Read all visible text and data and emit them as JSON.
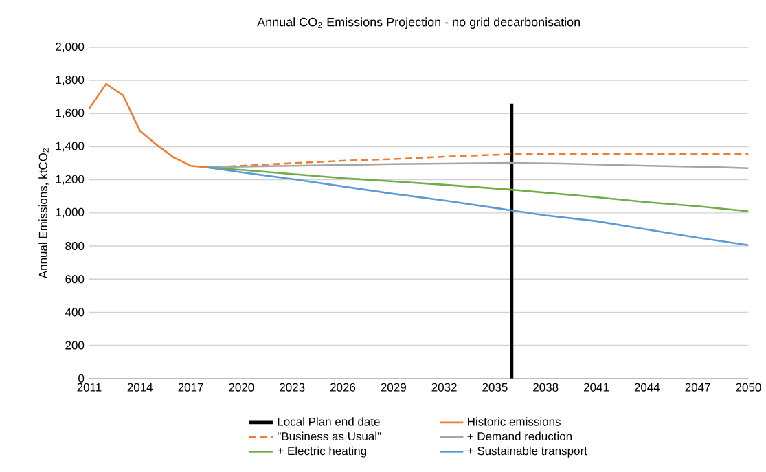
{
  "chart_data": {
    "type": "line",
    "title": "Annual CO$_{2}$ Emissions Projection - no grid decarbonisation",
    "ylabel": "Annual Emissions, ktCO$_{2}$",
    "xlim": [
      2011,
      2050
    ],
    "ylim": [
      0,
      2000
    ],
    "xticks": [
      2011,
      2014,
      2017,
      2020,
      2023,
      2026,
      2029,
      2032,
      2035,
      2038,
      2041,
      2044,
      2047,
      2050
    ],
    "yticks": [
      0,
      200,
      400,
      600,
      800,
      {
        "value": 1000,
        "label": "1,000"
      },
      {
        "value": 1200,
        "label": "1,200"
      },
      {
        "value": 1400,
        "label": "1,400"
      },
      {
        "value": 1600,
        "label": "1,600"
      },
      {
        "value": 1800,
        "label": "1,800"
      },
      {
        "value": 2000,
        "label": "2,000"
      }
    ],
    "grid": "y",
    "legend": "bottom",
    "line_style": "solid",
    "series": [
      {
        "name": "Local Plan end date",
        "color": "#000000",
        "x": [
          2036,
          2036
        ],
        "values": [
          0,
          1660
        ]
      },
      {
        "name": "Historic emissions",
        "color": "#ed7d31",
        "x": [
          2011,
          2012,
          2013,
          2014,
          2015,
          2016,
          2017,
          2018
        ],
        "values": [
          1630,
          1780,
          1710,
          1495,
          1410,
          1335,
          1285,
          1275
        ]
      },
      {
        "name": "\"Business as Usual\"",
        "color": "#ed7d31",
        "line_style": "dashed",
        "x": [
          2018,
          2020,
          2023,
          2026,
          2029,
          2032,
          2036,
          2040,
          2045,
          2050
        ],
        "values": [
          1275,
          1285,
          1300,
          1315,
          1325,
          1340,
          1355,
          1355,
          1355,
          1355
        ]
      },
      {
        "name": "+ Demand reduction",
        "color": "#a5a5a5",
        "x": [
          2018,
          2020,
          2023,
          2026,
          2029,
          2032,
          2036,
          2039,
          2042,
          2045,
          2048,
          2050
        ],
        "values": [
          1275,
          1280,
          1285,
          1290,
          1295,
          1298,
          1302,
          1298,
          1290,
          1283,
          1277,
          1270
        ]
      },
      {
        "name": "+ Electric heating",
        "color": "#70ad47",
        "x": [
          2018,
          2020,
          2023,
          2026,
          2029,
          2032,
          2036,
          2041,
          2044,
          2047,
          2050
        ],
        "values": [
          1275,
          1260,
          1235,
          1210,
          1190,
          1170,
          1140,
          1095,
          1065,
          1040,
          1010
        ]
      },
      {
        "name": "+ Sustainable transport",
        "color": "#5b9bd5",
        "x": [
          2018,
          2020,
          2023,
          2026,
          2029,
          2032,
          2035,
          2036,
          2038,
          2041,
          2044,
          2047,
          2050
        ],
        "values": [
          1275,
          1245,
          1205,
          1160,
          1115,
          1075,
          1030,
          1015,
          985,
          950,
          900,
          850,
          805
        ]
      }
    ]
  }
}
